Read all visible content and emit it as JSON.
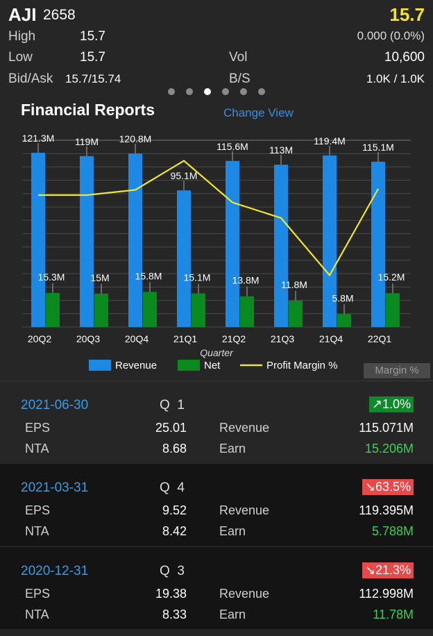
{
  "quote": {
    "symbol": "AJI",
    "code": "2658",
    "price": "15.7",
    "high_label": "High",
    "high": "15.7",
    "change": "0.000 (0.0%)",
    "low_label": "Low",
    "low": "15.7",
    "vol_label": "Vol",
    "vol": "10,600",
    "bidask_label": "Bid/Ask",
    "bidask": "15.7/15.74",
    "bs_label": "B/S",
    "bs": "1.0K / 1.0K"
  },
  "pager": {
    "count": 6,
    "active": 2
  },
  "section": {
    "title": "Financial Reports",
    "change_view": "Change View",
    "margin_button": "Margin %"
  },
  "chart_data": {
    "type": "bar",
    "categories": [
      "20Q2",
      "20Q3",
      "20Q4",
      "21Q1",
      "21Q2",
      "21Q3",
      "21Q4",
      "22Q1"
    ],
    "xlabel": "Quarter",
    "series": [
      {
        "name": "Revenue",
        "color": "#1e88e5",
        "values": [
          121.3,
          119,
          120.8,
          95.1,
          115.6,
          113,
          119.4,
          115.1
        ],
        "labels": [
          "121.3M",
          "119M",
          "120.8M",
          "95.1M",
          "115.6M",
          "113M",
          "119.4M",
          "115.1M"
        ]
      },
      {
        "name": "Net",
        "color": "#0a8a1e",
        "values": [
          15.3,
          15,
          15.8,
          15.1,
          13.8,
          11.8,
          5.8,
          15.2
        ],
        "labels": [
          "15.3M",
          "15M",
          "15.8M",
          "15.1M",
          "13.8M",
          "11.8M",
          "5.8M",
          "15.2M"
        ]
      },
      {
        "name": "Profit Margin %",
        "color": "#f0e62e",
        "type": "line",
        "values": [
          12.6,
          12.6,
          13.1,
          15.9,
          11.9,
          10.4,
          4.9,
          13.2
        ]
      }
    ],
    "ylim": [
      0,
      130
    ],
    "grid": true,
    "legend": "bottom"
  },
  "reports": [
    {
      "date": "2021-06-30",
      "q_label": "Q",
      "q": "1",
      "change": "↗1.0%",
      "direction": "up",
      "eps_label": "EPS",
      "eps": "25.01",
      "nta_label": "NTA",
      "nta": "8.68",
      "revenue_label": "Revenue",
      "revenue": "115.071M",
      "earn_label": "Earn",
      "earn": "15.206M"
    },
    {
      "date": "2021-03-31",
      "q_label": "Q",
      "q": "4",
      "change": "↘63.5%",
      "direction": "down",
      "eps_label": "EPS",
      "eps": "9.52",
      "nta_label": "NTA",
      "nta": "8.42",
      "revenue_label": "Revenue",
      "revenue": "119.395M",
      "earn_label": "Earn",
      "earn": "5.788M"
    },
    {
      "date": "2020-12-31",
      "q_label": "Q",
      "q": "3",
      "change": "↘21.3%",
      "direction": "down",
      "eps_label": "EPS",
      "eps": "19.38",
      "nta_label": "NTA",
      "nta": "8.33",
      "revenue_label": "Revenue",
      "revenue": "112.998M",
      "earn_label": "Earn",
      "earn": "11.78M"
    }
  ]
}
